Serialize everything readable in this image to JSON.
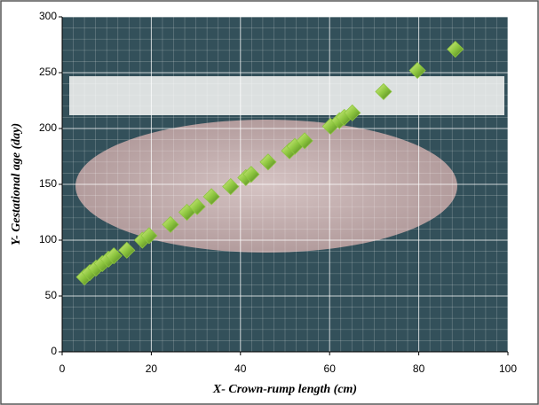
{
  "chart_data": {
    "type": "scatter",
    "x_label": "X- Crown-rump length (cm)",
    "y_label": "Y- Gestational age (day)",
    "xlim": [
      0,
      100
    ],
    "ylim": [
      0,
      300
    ],
    "xticks": [
      0,
      20,
      40,
      60,
      80,
      100
    ],
    "yticks": [
      0,
      50,
      100,
      150,
      200,
      250,
      300
    ],
    "grid": true,
    "color": "#8dc63f",
    "x": [
      5.0,
      6.2,
      7.6,
      9.0,
      10.4,
      11.6,
      14.5,
      18.0,
      19.5,
      24.3,
      28.0,
      30.3,
      33.5,
      37.8,
      41.2,
      42.4,
      46.2,
      51.0,
      52.2,
      54.4,
      60.2,
      62.2,
      63.3,
      65.1,
      72.1,
      79.7,
      88.2
    ],
    "values": [
      67,
      71,
      75,
      79,
      83,
      86,
      91,
      100,
      104,
      114,
      125,
      130,
      139,
      148,
      156,
      159,
      170,
      180,
      184,
      189,
      202,
      207,
      210,
      214,
      233,
      252,
      271
    ]
  }
}
